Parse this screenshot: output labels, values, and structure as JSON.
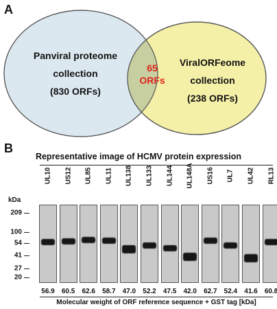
{
  "panel_a": {
    "letter": "A",
    "left_circle": {
      "line1": "Panviral proteome",
      "line2": "collection",
      "line3": "(830 ORFs)",
      "fill": "#dbe8f0"
    },
    "right_circle": {
      "line1": "ViralORFeome",
      "line2": "collection",
      "line3": "(238 ORFs)",
      "fill": "#f5f0a8"
    },
    "overlap": {
      "line1": "65",
      "line2": "ORFs",
      "fill": "#c7cfa0",
      "color": "#e0241c"
    }
  },
  "panel_b": {
    "letter": "B",
    "title": "Representative image of HCMV protein expression",
    "kda_label": "kDa",
    "markers": [
      "209",
      "100",
      "54",
      "41",
      "27",
      "20"
    ],
    "x_caption": "Molecular weight of ORF reference sequence + GST tag [kDa]"
  },
  "chart_data": {
    "type": "table",
    "title": "Representative image of HCMV protein expression",
    "columns": [
      "ORF",
      "Molecular weight (kDa)"
    ],
    "lanes": [
      "UL10",
      "US12",
      "UL85",
      "UL11",
      "UL138",
      "UL133",
      "UL144",
      "UL148A",
      "US16",
      "UL7",
      "UL42",
      "RL13"
    ],
    "mw_kda": [
      "56.9",
      "60.5",
      "62.6",
      "58.7",
      "47.0",
      "52.2",
      "47.5",
      "42.0",
      "62.7",
      "52.4",
      "41.6",
      "60.8"
    ],
    "marker_kda": [
      209,
      100,
      54,
      41,
      27,
      20
    ],
    "band_apparent_kda": [
      60,
      62,
      68,
      64,
      48,
      52,
      49,
      40,
      64,
      52,
      38,
      60
    ]
  }
}
